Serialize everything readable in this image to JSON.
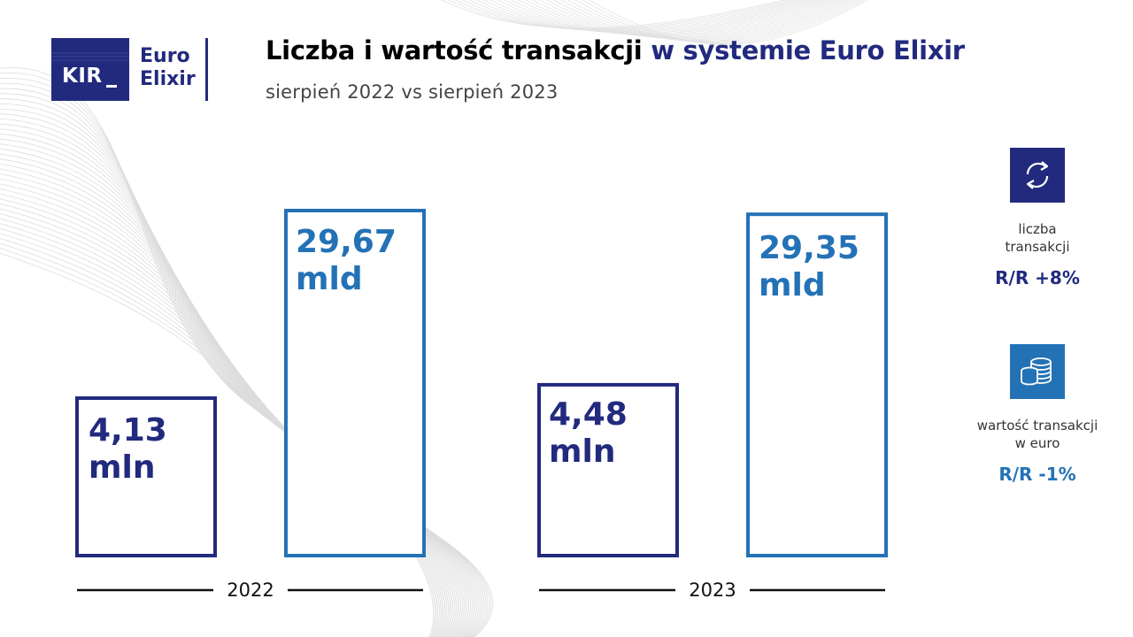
{
  "logo": {
    "kir": "KIR",
    "line1": "Euro",
    "line2": "Elixir"
  },
  "title": {
    "part1": "Liczba i wartość transakcji",
    "part2": "w systemie Euro Elixir"
  },
  "subtitle": "sierpień 2022 vs sierpień 2023",
  "colors": {
    "navy": "#222a7e",
    "blue": "#2472b6"
  },
  "chart_data": {
    "type": "bar",
    "categories": [
      "2022",
      "2023"
    ],
    "series": [
      {
        "name": "liczba transakcji",
        "values": [
          4.13,
          4.48
        ],
        "labels": [
          "4,13 mln",
          "4,48 mln"
        ],
        "color": "#222a7e"
      },
      {
        "name": "wartość transakcji w euro",
        "values": [
          29.67,
          29.35
        ],
        "labels": [
          "29,67 mld",
          "29,35 mld"
        ],
        "color": "#2472b6"
      }
    ]
  },
  "bar_labels": {
    "b2022_count": {
      "line1": "4,13",
      "line2": "mln"
    },
    "b2022_value": {
      "line1": "29,67",
      "line2": "mld"
    },
    "b2023_count": {
      "line1": "4,48",
      "line2": "mln"
    },
    "b2023_value": {
      "line1": "29,35",
      "line2": "mld"
    }
  },
  "years": {
    "y2022": "2022",
    "y2023": "2023"
  },
  "side": {
    "count": {
      "icon": "exchange-arrows-icon",
      "line1": "liczba",
      "line2": "transakcji",
      "value": "R/R +8%"
    },
    "value": {
      "icon": "coin-stack-icon",
      "line1": "wartość transakcji",
      "line2": "w euro",
      "value": "R/R -1%"
    }
  }
}
